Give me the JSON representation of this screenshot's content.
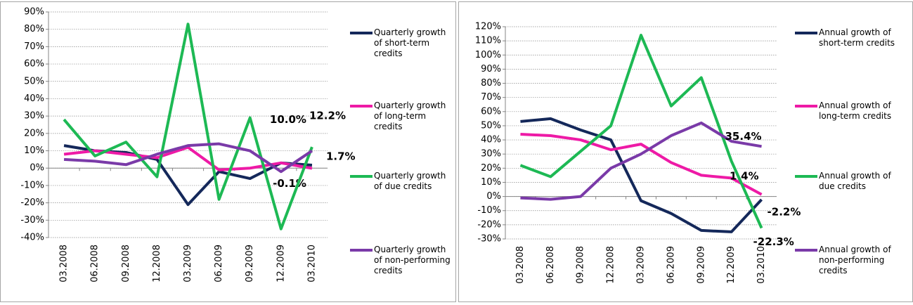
{
  "chart_data": [
    {
      "type": "line",
      "categories": [
        "03.2008",
        "06.2008",
        "09.2008",
        "12.2008",
        "03.2009",
        "06.2009",
        "09.2009",
        "12.2009",
        "03.2010"
      ],
      "ylim": [
        -40,
        90
      ],
      "yticks": [
        {
          "value": -40,
          "label": "-40%"
        },
        {
          "value": -30,
          "label": "-30%"
        },
        {
          "value": -20,
          "label": "-20%"
        },
        {
          "value": -10,
          "label": "-10%"
        },
        {
          "value": 0,
          "label": "0%"
        },
        {
          "value": 10,
          "label": "10%"
        },
        {
          "value": 20,
          "label": "20%"
        },
        {
          "value": 30,
          "label": "30%"
        },
        {
          "value": 40,
          "label": "40%"
        },
        {
          "value": 50,
          "label": "50%"
        },
        {
          "value": 60,
          "label": "60%"
        },
        {
          "value": 70,
          "label": "70%"
        },
        {
          "value": 80,
          "label": "80%"
        },
        {
          "value": 90,
          "label": "90%"
        }
      ],
      "grid": true,
      "series": [
        {
          "name": "Quarterly growth of short-term credits",
          "color": "#14285a",
          "values": [
            13,
            10,
            9,
            5,
            -21,
            -2,
            -6,
            3,
            1.7
          ],
          "value_labels": [
            null,
            null,
            null,
            null,
            null,
            null,
            null,
            null,
            "1.7%"
          ]
        },
        {
          "name": "Quarterly growth of long-term credits",
          "color": "#ee1aa6",
          "values": [
            8,
            10,
            8,
            6,
            12,
            -1,
            0,
            3,
            -0.1
          ],
          "value_labels": [
            null,
            null,
            null,
            null,
            null,
            null,
            null,
            null,
            "-0.1%"
          ]
        },
        {
          "name": "Quarterly growth of due credits",
          "color": "#1db954",
          "values": [
            28,
            7,
            15,
            -5,
            83,
            -18,
            29,
            -35,
            12.2
          ],
          "value_labels": [
            null,
            null,
            null,
            null,
            null,
            null,
            null,
            null,
            "12.2%"
          ]
        },
        {
          "name": "Quarterly growth of non-performing credits",
          "color": "#7a3aa8",
          "values": [
            5,
            4,
            2,
            8,
            13,
            14,
            10,
            -2,
            10.0
          ],
          "value_labels": [
            null,
            null,
            null,
            null,
            null,
            null,
            null,
            null,
            "10.0%"
          ]
        }
      ]
    },
    {
      "type": "line",
      "categories": [
        "03.2008",
        "06.2008",
        "09.2008",
        "12.2008",
        "03.2009",
        "06.2009",
        "09.2009",
        "12.2009",
        "03.2010"
      ],
      "ylim": [
        -30,
        120
      ],
      "yticks": [
        {
          "value": -30,
          "label": "-30%"
        },
        {
          "value": -20,
          "label": "-20%"
        },
        {
          "value": -10,
          "label": "-10%"
        },
        {
          "value": 0,
          "label": "0%"
        },
        {
          "value": 10,
          "label": "10%"
        },
        {
          "value": 20,
          "label": "20%"
        },
        {
          "value": 30,
          "label": "30%"
        },
        {
          "value": 40,
          "label": "40%"
        },
        {
          "value": 50,
          "label": "50%"
        },
        {
          "value": 60,
          "label": "60%"
        },
        {
          "value": 70,
          "label": "70%"
        },
        {
          "value": 80,
          "label": "80%"
        },
        {
          "value": 90,
          "label": "90%"
        },
        {
          "value": 100,
          "label": "100%"
        },
        {
          "value": 110,
          "label": "110%"
        },
        {
          "value": 120,
          "label": "120%"
        }
      ],
      "grid": true,
      "series": [
        {
          "name": "Annual growth of short-term credits",
          "color": "#14285a",
          "values": [
            53,
            55,
            47,
            40,
            -3,
            -12,
            -24,
            -25,
            -2.2
          ],
          "value_labels": [
            null,
            null,
            null,
            null,
            null,
            null,
            null,
            null,
            "-2.2%"
          ]
        },
        {
          "name": "Annual growth of long-term credits",
          "color": "#ee1aa6",
          "values": [
            44,
            43,
            40,
            33,
            37,
            24,
            15,
            13,
            1.4
          ],
          "value_labels": [
            null,
            null,
            null,
            null,
            null,
            null,
            null,
            null,
            "1.4%"
          ]
        },
        {
          "name": "Annual growth of due credits",
          "color": "#1db954",
          "values": [
            22,
            14,
            32,
            50,
            114,
            64,
            84,
            25,
            -22.3
          ],
          "value_labels": [
            null,
            null,
            null,
            null,
            null,
            null,
            null,
            null,
            "-22.3%"
          ]
        },
        {
          "name": "Annual growth of non-performing credits",
          "color": "#7a3aa8",
          "values": [
            -1,
            -2,
            0,
            20,
            30,
            43,
            52,
            39,
            35.4
          ],
          "value_labels": [
            null,
            null,
            null,
            null,
            null,
            null,
            null,
            null,
            "35.4%"
          ]
        }
      ]
    }
  ]
}
